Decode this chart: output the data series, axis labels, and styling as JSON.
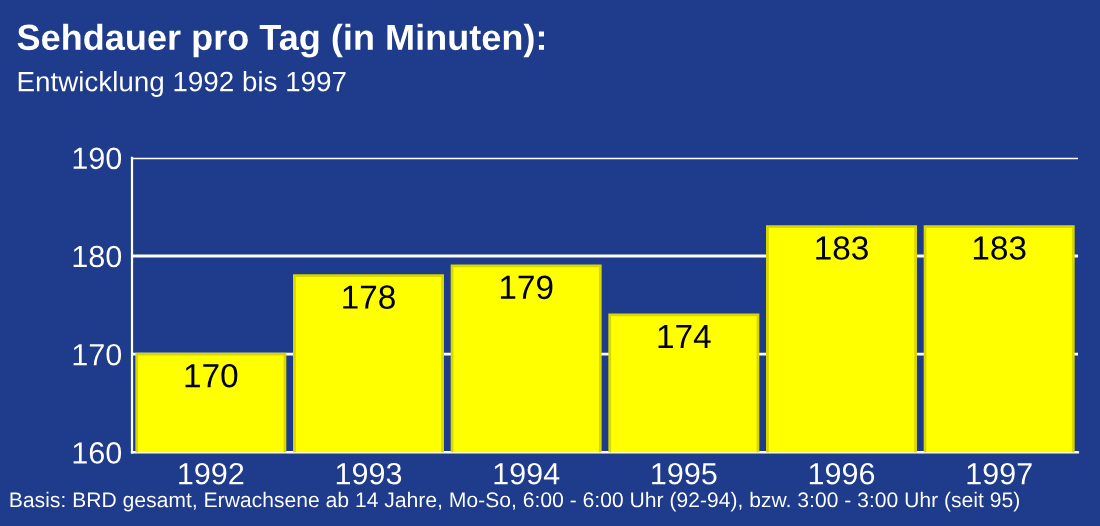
{
  "chart_data": {
    "type": "bar",
    "title": "Sehdauer pro Tag (in Minuten):",
    "subtitle": "Entwicklung 1992 bis 1997",
    "categories": [
      "1992",
      "1993",
      "1994",
      "1995",
      "1996",
      "1997"
    ],
    "values": [
      170,
      178,
      179,
      174,
      183,
      183
    ],
    "color": "#ffff00",
    "ylim": [
      160,
      190
    ],
    "yticks": [
      160,
      170,
      180,
      190
    ],
    "grid": "y",
    "data_labels": true,
    "annotations": [
      "Basis: BRD gesamt, Erwachsene ab 14 Jahre, Mo-So, 6:00 - 6:00 Uhr (92-94), bzw. 3:00 - 3:00 Uhr (seit 95)"
    ]
  }
}
